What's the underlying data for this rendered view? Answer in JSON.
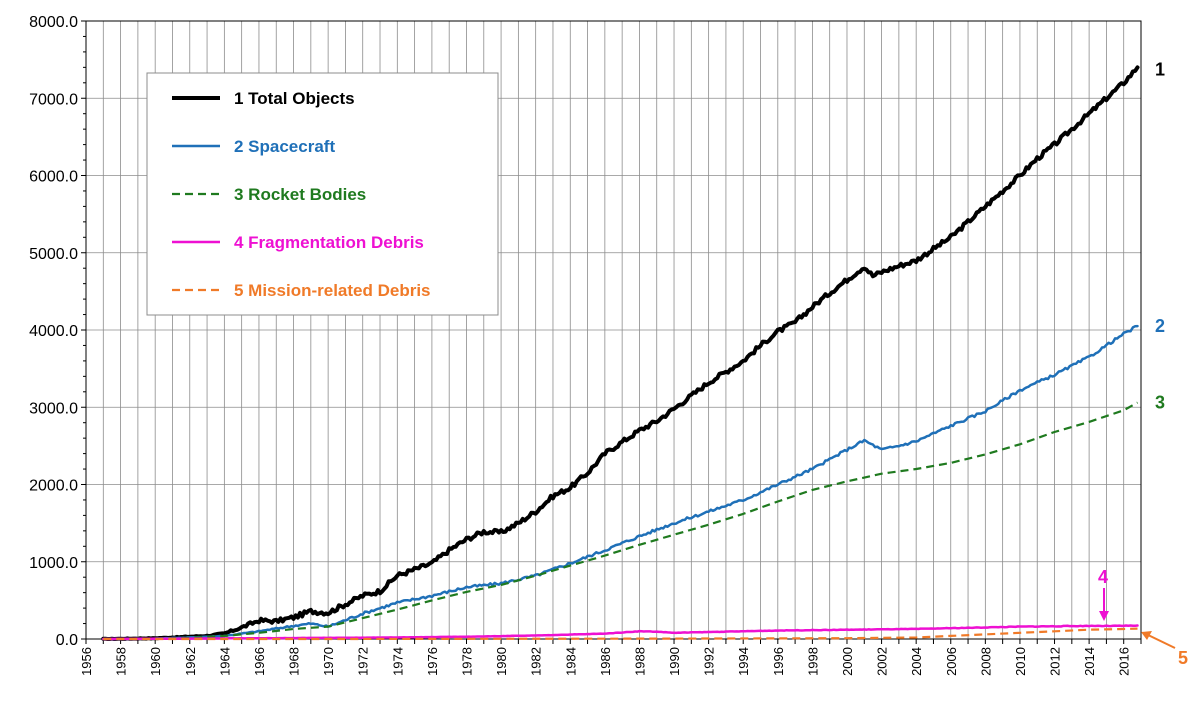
{
  "chart_data": {
    "type": "line",
    "title": "",
    "xlabel": "",
    "ylabel": "",
    "xlim": [
      1956,
      2017
    ],
    "ylim": [
      0,
      8000
    ],
    "y_ticks": [
      "0.0",
      "1000.0",
      "2000.0",
      "3000.0",
      "4000.0",
      "5000.0",
      "6000.0",
      "7000.0",
      "8000.0"
    ],
    "x_ticks": [
      "1956",
      "1958",
      "1960",
      "1962",
      "1964",
      "1966",
      "1968",
      "1970",
      "1972",
      "1974",
      "1976",
      "1978",
      "1980",
      "1982",
      "1984",
      "1986",
      "1988",
      "1990",
      "1992",
      "1994",
      "1996",
      "1998",
      "2000",
      "2002",
      "2004",
      "2006",
      "2008",
      "2010",
      "2012",
      "2014",
      "2016"
    ],
    "grid": true,
    "legend_position": "top-left",
    "series": [
      {
        "name": "1 Total Objects",
        "end_label": "1",
        "color": "#000000",
        "dash": "solid",
        "points": [
          [
            1957,
            0
          ],
          [
            1960,
            10
          ],
          [
            1963,
            40
          ],
          [
            1964,
            70
          ],
          [
            1965,
            150
          ],
          [
            1966,
            240
          ],
          [
            1967,
            230
          ],
          [
            1968,
            280
          ],
          [
            1969,
            360
          ],
          [
            1970,
            340
          ],
          [
            1971,
            450
          ],
          [
            1972,
            560
          ],
          [
            1973,
            620
          ],
          [
            1974,
            820
          ],
          [
            1975,
            900
          ],
          [
            1976,
            980
          ],
          [
            1977,
            1150
          ],
          [
            1978,
            1290
          ],
          [
            1979,
            1390
          ],
          [
            1980,
            1380
          ],
          [
            1981,
            1500
          ],
          [
            1982,
            1650
          ],
          [
            1983,
            1850
          ],
          [
            1984,
            1960
          ],
          [
            1985,
            2150
          ],
          [
            1986,
            2400
          ],
          [
            1987,
            2550
          ],
          [
            1988,
            2700
          ],
          [
            1989,
            2820
          ],
          [
            1990,
            2980
          ],
          [
            1991,
            3150
          ],
          [
            1992,
            3320
          ],
          [
            1993,
            3460
          ],
          [
            1994,
            3600
          ],
          [
            1995,
            3800
          ],
          [
            1996,
            3980
          ],
          [
            1997,
            4100
          ],
          [
            1998,
            4300
          ],
          [
            1999,
            4480
          ],
          [
            2000,
            4650
          ],
          [
            2001,
            4820
          ],
          [
            2001.5,
            4700
          ],
          [
            2002,
            4750
          ],
          [
            2003,
            4830
          ],
          [
            2004,
            4900
          ],
          [
            2005,
            5050
          ],
          [
            2006,
            5200
          ],
          [
            2007,
            5400
          ],
          [
            2008,
            5600
          ],
          [
            2009,
            5800
          ],
          [
            2010,
            6000
          ],
          [
            2011,
            6220
          ],
          [
            2012,
            6400
          ],
          [
            2013,
            6600
          ],
          [
            2014,
            6800
          ],
          [
            2015,
            7000
          ],
          [
            2016,
            7200
          ],
          [
            2016.8,
            7400
          ]
        ]
      },
      {
        "name": "2 Spacecraft",
        "end_label": "2",
        "color": "#1f70b8",
        "dash": "solid",
        "points": [
          [
            1957,
            0
          ],
          [
            1960,
            5
          ],
          [
            1962,
            20
          ],
          [
            1964,
            40
          ],
          [
            1966,
            100
          ],
          [
            1968,
            170
          ],
          [
            1969,
            200
          ],
          [
            1970,
            160
          ],
          [
            1972,
            330
          ],
          [
            1974,
            470
          ],
          [
            1976,
            560
          ],
          [
            1978,
            670
          ],
          [
            1980,
            720
          ],
          [
            1982,
            820
          ],
          [
            1984,
            980
          ],
          [
            1986,
            1150
          ],
          [
            1988,
            1330
          ],
          [
            1990,
            1500
          ],
          [
            1992,
            1650
          ],
          [
            1994,
            1800
          ],
          [
            1996,
            2000
          ],
          [
            1998,
            2200
          ],
          [
            2000,
            2450
          ],
          [
            2001,
            2570
          ],
          [
            2002,
            2450
          ],
          [
            2003,
            2500
          ],
          [
            2004,
            2560
          ],
          [
            2006,
            2760
          ],
          [
            2008,
            2950
          ],
          [
            2010,
            3220
          ],
          [
            2012,
            3420
          ],
          [
            2014,
            3650
          ],
          [
            2016,
            3950
          ],
          [
            2016.8,
            4050
          ]
        ]
      },
      {
        "name": "3 Rocket Bodies",
        "end_label": "3",
        "color": "#1f7a1f",
        "dash": "dashed",
        "points": [
          [
            1957,
            0
          ],
          [
            1960,
            5
          ],
          [
            1962,
            15
          ],
          [
            1964,
            40
          ],
          [
            1966,
            80
          ],
          [
            1968,
            130
          ],
          [
            1970,
            160
          ],
          [
            1972,
            270
          ],
          [
            1974,
            380
          ],
          [
            1976,
            500
          ],
          [
            1978,
            610
          ],
          [
            1980,
            700
          ],
          [
            1982,
            820
          ],
          [
            1984,
            950
          ],
          [
            1986,
            1080
          ],
          [
            1988,
            1220
          ],
          [
            1990,
            1350
          ],
          [
            1992,
            1480
          ],
          [
            1994,
            1620
          ],
          [
            1996,
            1780
          ],
          [
            1998,
            1930
          ],
          [
            2000,
            2040
          ],
          [
            2002,
            2140
          ],
          [
            2004,
            2200
          ],
          [
            2006,
            2280
          ],
          [
            2008,
            2390
          ],
          [
            2010,
            2520
          ],
          [
            2012,
            2680
          ],
          [
            2014,
            2810
          ],
          [
            2016,
            2960
          ],
          [
            2016.8,
            3060
          ]
        ]
      },
      {
        "name": "4 Fragmentation Debris",
        "end_label": "4",
        "color": "#ee10d2",
        "dash": "solid",
        "points": [
          [
            1957,
            0
          ],
          [
            1962,
            5
          ],
          [
            1966,
            10
          ],
          [
            1970,
            15
          ],
          [
            1974,
            20
          ],
          [
            1978,
            30
          ],
          [
            1982,
            45
          ],
          [
            1986,
            70
          ],
          [
            1988,
            100
          ],
          [
            1989,
            95
          ],
          [
            1990,
            80
          ],
          [
            1992,
            90
          ],
          [
            1994,
            100
          ],
          [
            1996,
            110
          ],
          [
            1998,
            115
          ],
          [
            2000,
            120
          ],
          [
            2002,
            125
          ],
          [
            2004,
            130
          ],
          [
            2006,
            140
          ],
          [
            2008,
            150
          ],
          [
            2010,
            160
          ],
          [
            2012,
            165
          ],
          [
            2014,
            170
          ],
          [
            2016,
            170
          ],
          [
            2016.8,
            175
          ]
        ]
      },
      {
        "name": "5 Mission-related Debris",
        "end_label": "5",
        "color": "#f07a28",
        "dash": "dashed",
        "points": [
          [
            1957,
            0
          ],
          [
            1970,
            0
          ],
          [
            1980,
            2
          ],
          [
            1990,
            5
          ],
          [
            2000,
            10
          ],
          [
            2004,
            20
          ],
          [
            2006,
            40
          ],
          [
            2008,
            60
          ],
          [
            2010,
            80
          ],
          [
            2012,
            100
          ],
          [
            2014,
            120
          ],
          [
            2016,
            130
          ],
          [
            2016.8,
            135
          ]
        ]
      }
    ]
  }
}
